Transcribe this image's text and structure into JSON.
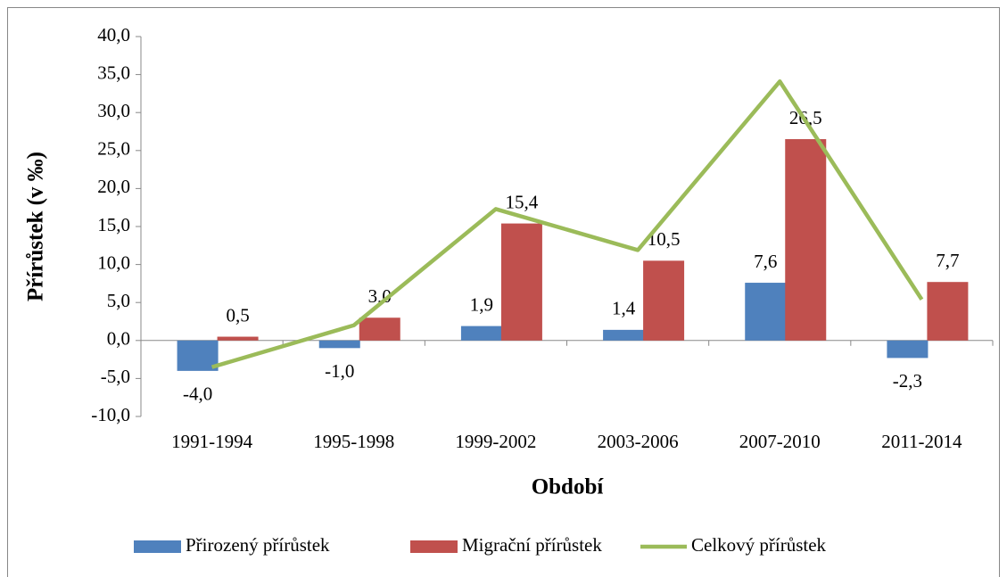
{
  "chart_data": {
    "type": "bar_line",
    "x_label": "Období",
    "y_label": "Přírůstek (v ‰)",
    "categories": [
      "1991-1994",
      "1995-1998",
      "1999-2002",
      "2003-2006",
      "2007-2010",
      "2011-2014"
    ],
    "series": [
      {
        "name": "Přirozený přírůstek",
        "type": "bar",
        "color": "#4f81bd",
        "values": [
          -4.0,
          -1.0,
          1.9,
          1.4,
          7.6,
          -2.3
        ],
        "value_labels": [
          "-4,0",
          "-1,0",
          "1,9",
          "1,4",
          "7,6",
          "-2,3"
        ]
      },
      {
        "name": "Migrační přírůstek",
        "type": "bar",
        "color": "#c0504d",
        "values": [
          0.5,
          3.0,
          15.4,
          10.5,
          26.5,
          7.7
        ],
        "value_labels": [
          "0,5",
          "3,0",
          "15,4",
          "10,5",
          "26,5",
          "7,7"
        ]
      },
      {
        "name": "Celkový přírůstek",
        "type": "line",
        "color": "#9bbb59",
        "values": [
          -3.5,
          2.0,
          17.3,
          11.9,
          34.1,
          5.4
        ]
      }
    ],
    "ylim": [
      -10,
      40
    ],
    "yticks": [
      {
        "value": -10,
        "label": "-10,0"
      },
      {
        "value": -5,
        "label": "-5,0"
      },
      {
        "value": 0,
        "label": "0,0"
      },
      {
        "value": 5,
        "label": "5,0"
      },
      {
        "value": 10,
        "label": "10,0"
      },
      {
        "value": 15,
        "label": "15,0"
      },
      {
        "value": 20,
        "label": "20,0"
      },
      {
        "value": 25,
        "label": "25,0"
      },
      {
        "value": 30,
        "label": "30,0"
      },
      {
        "value": 35,
        "label": "35,0"
      },
      {
        "value": 40,
        "label": "40,0"
      }
    ],
    "legend": "bottom"
  }
}
